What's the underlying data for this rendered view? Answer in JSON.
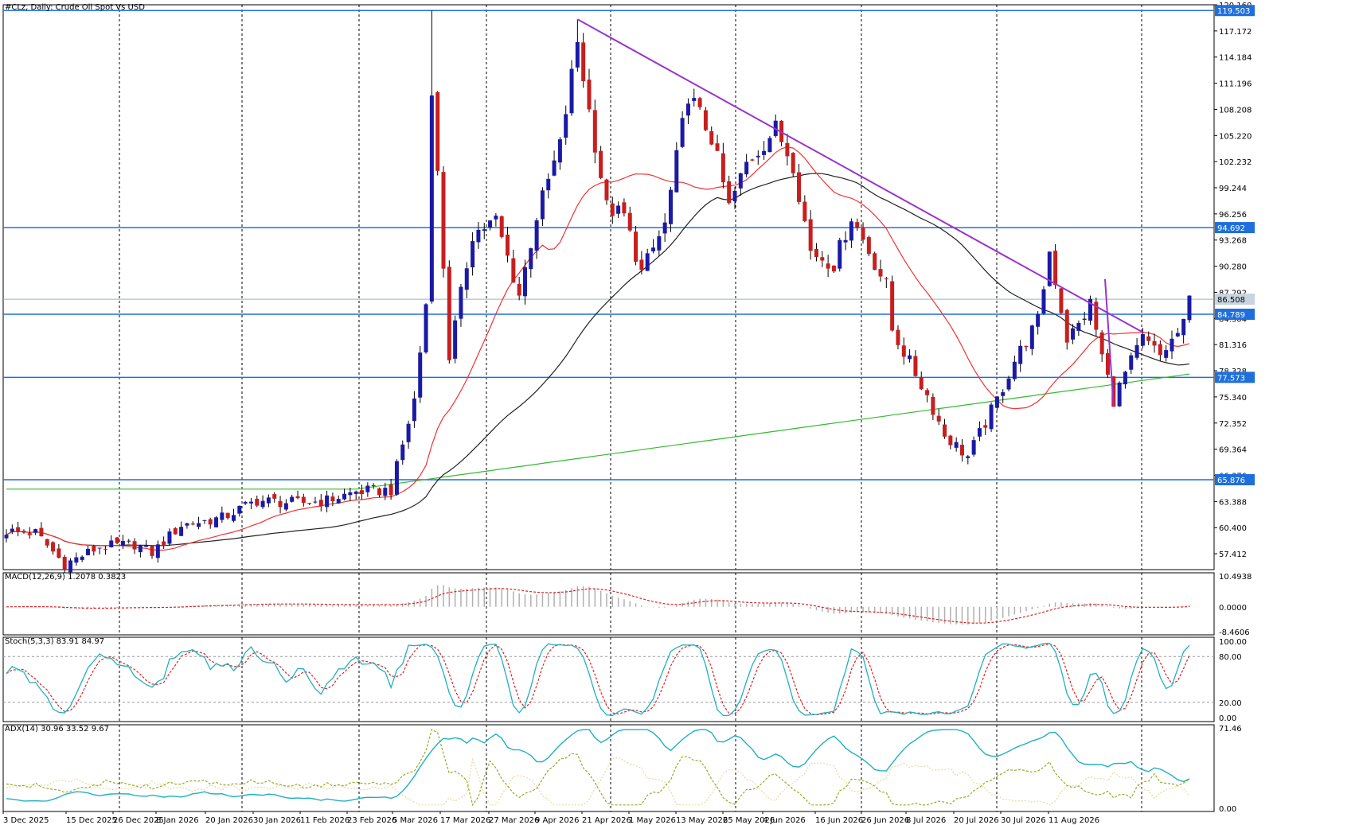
{
  "chart_title": "#CLz, Daily:  Crude Oil Spot Vs USD",
  "colors": {
    "up": "#1a1aa6",
    "down": "#c81e1e",
    "ma_fast": "#ee3333",
    "ma_mid": "#222222",
    "ma_slow": "#33bb33",
    "hline": "#1e6fdc",
    "trend": "#9933cc",
    "macd_hist": "#b0b0b0",
    "macd_signal": "#dd2222",
    "stoch_main": "#20b0c0",
    "stoch_signal": "#dd2222",
    "adx": "#20b0c0",
    "di_plus": "#9aa822",
    "di_minus": "#e8d8a0"
  },
  "chart_data": {
    "type": "candlestick",
    "timeframe": "Daily",
    "price_axis_ticks": [
      "120.160",
      "117.172",
      "114.184",
      "111.196",
      "108.208",
      "105.220",
      "102.232",
      "99.244",
      "96.256",
      "93.268",
      "90.280",
      "87.292",
      "84.304",
      "81.316",
      "78.328",
      "75.340",
      "72.352",
      "69.364",
      "66.376",
      "63.388",
      "60.400",
      "57.412"
    ],
    "ylim": [
      55.6,
      120.16
    ],
    "horizontal_levels": [
      {
        "label": "119.503",
        "value": 119.503
      },
      {
        "label": "94.692",
        "value": 94.692
      },
      {
        "label": "84.789",
        "value": 84.789
      },
      {
        "label": "77.573",
        "value": 77.573
      },
      {
        "label": "65.876",
        "value": 65.876
      }
    ],
    "current_price": {
      "label": "86.508",
      "value": 86.508
    },
    "date_labels": [
      "3 Dec 2025",
      "15 Dec 2025",
      "26 Dec 2025",
      "8 Jan 2026",
      "20 Jan 2026",
      "30 Jan 2026",
      "11 Feb 2026",
      "23 Feb 2026",
      "5 Mar 2026",
      "17 Mar 2026",
      "27 Mar 2026",
      "9 Apr 2026",
      "21 Apr 2026",
      "1 May 2026",
      "13 May 2026",
      "25 May 2026",
      "4 Jun 2026",
      "16 Jun 2026",
      "26 Jun 2026",
      "8 Jul 2026",
      "20 Jul 2026",
      "30 Jul 2026",
      "11 Aug 2026"
    ],
    "close_anchors": [
      [
        0,
        60
      ],
      [
        5,
        59.8
      ],
      [
        10,
        56.2
      ],
      [
        16,
        58.2
      ],
      [
        22,
        58.5
      ],
      [
        25,
        57.5
      ],
      [
        30,
        60.7
      ],
      [
        37,
        61.5
      ],
      [
        43,
        63.5
      ],
      [
        50,
        63.2
      ],
      [
        55,
        63.5
      ],
      [
        60,
        64.5
      ],
      [
        66,
        64.7
      ],
      [
        70,
        75
      ],
      [
        72,
        86
      ],
      [
        73,
        111
      ],
      [
        76,
        80
      ],
      [
        80,
        94
      ],
      [
        84,
        95.5
      ],
      [
        88,
        87
      ],
      [
        91,
        96
      ],
      [
        95,
        104
      ],
      [
        98,
        116
      ],
      [
        100,
        108
      ],
      [
        103,
        97
      ],
      [
        106,
        96
      ],
      [
        109,
        89.5
      ],
      [
        113,
        95
      ],
      [
        117,
        110
      ],
      [
        121,
        105
      ],
      [
        124,
        97
      ],
      [
        127,
        102
      ],
      [
        132,
        106
      ],
      [
        135,
        102
      ],
      [
        138,
        92
      ],
      [
        142,
        90.5
      ],
      [
        145,
        96
      ],
      [
        148,
        92
      ],
      [
        151,
        88
      ],
      [
        152,
        83
      ],
      [
        154,
        80.5
      ],
      [
        158,
        75.5
      ],
      [
        161,
        71
      ],
      [
        165,
        68.5
      ],
      [
        170,
        75
      ],
      [
        173,
        79.5
      ],
      [
        177,
        84
      ],
      [
        179,
        92
      ],
      [
        182,
        82
      ],
      [
        184,
        83.5
      ],
      [
        186,
        86
      ],
      [
        188,
        80
      ],
      [
        190,
        75
      ],
      [
        192,
        78
      ],
      [
        195,
        82
      ],
      [
        198,
        80
      ],
      [
        202,
        83.5
      ],
      [
        203,
        86.5
      ]
    ],
    "macd": {
      "label": "MACD(12,26,9) 1.2078 0.3823",
      "ticks": [
        "10.4938",
        "0.0000",
        "-8.4606"
      ]
    },
    "stochastic": {
      "label": "Stoch(5,3,3) 83.91 84.97",
      "ticks": [
        "100.00",
        "80.00",
        "20.00",
        "0.00"
      ]
    },
    "adx": {
      "label": "ADX(14) 30.96 33.52 9.67",
      "ticks": [
        "71.46",
        "0.00"
      ]
    }
  }
}
